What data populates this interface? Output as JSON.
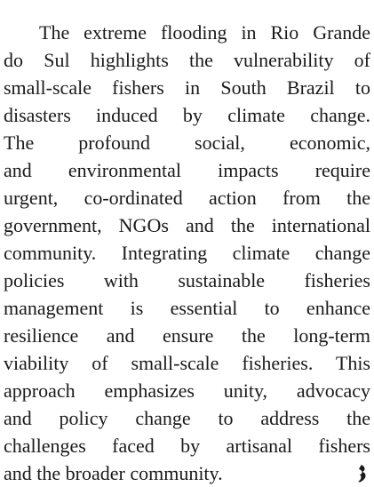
{
  "paragraph": {
    "lines": [
      "The extreme flooding in Rio Grande",
      "do Sul highlights the vulnerability of",
      "small-scale fishers in South Brazil to",
      "disasters induced by climate change.",
      "The profound social, economic,",
      "and environmental impacts require",
      "urgent, co-ordinated action from the",
      "government, NGOs and the international",
      "community. Integrating climate change",
      "policies with sustainable fisheries",
      "management is essential to enhance",
      "resilience and ensure the long-term",
      "viability of small-scale fisheries. This",
      "approach emphasizes unity, advocacy",
      "and policy change to address the",
      "challenges faced by artisanal fishers",
      "and the broader community."
    ]
  }
}
